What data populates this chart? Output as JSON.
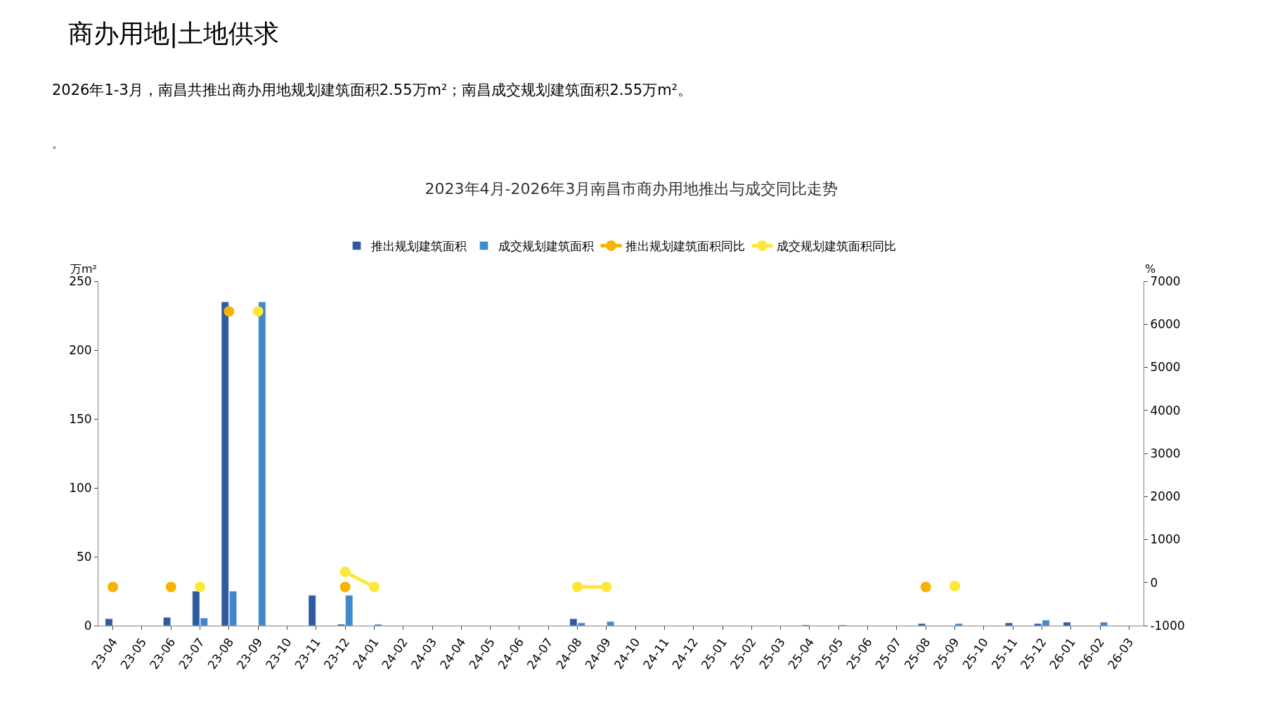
{
  "chart_data": {
    "type": "bar",
    "title": "2023年4月-2026年3月南昌市商办用地推出与成交同比走势",
    "ylabel": "万m²",
    "y2label": "%",
    "annotations": [
      "商办用地|土地供求",
      "2026年1-3月，南昌共推出商办用地规划建筑面积2.55万m²；南昌成交规划建筑面积2.55万m²。",
      "。"
    ],
    "categories": [
      "23-04",
      "23-05",
      "23-06",
      "23-07",
      "23-08",
      "23-09",
      "23-10",
      "23-11",
      "23-12",
      "24-01",
      "24-02",
      "24-03",
      "24-04",
      "24-05",
      "24-06",
      "24-07",
      "24-08",
      "24-09",
      "24-10",
      "24-11",
      "24-12",
      "25-01",
      "25-02",
      "25-03",
      "25-04",
      "25-05",
      "25-06",
      "25-07",
      "25-08",
      "25-09",
      "25-10",
      "25-11",
      "25-12",
      "26-01",
      "26-02",
      "26-03"
    ],
    "series": [
      {
        "name": "推出规划建筑面积",
        "color": "#2e5aa0",
        "values": [
          5,
          null,
          6,
          25,
          235,
          null,
          null,
          22,
          1,
          null,
          null,
          null,
          null,
          null,
          null,
          null,
          5,
          null,
          null,
          null,
          null,
          null,
          null,
          null,
          0.5,
          null,
          null,
          null,
          1.5,
          null,
          null,
          2,
          1.5,
          2.5,
          null,
          null
        ]
      },
      {
        "name": "成交规划建筑面积",
        "color": "#3f88cc",
        "values": [
          null,
          null,
          null,
          5.5,
          25,
          235,
          null,
          null,
          22,
          1,
          null,
          null,
          null,
          null,
          null,
          null,
          2,
          3,
          null,
          null,
          null,
          null,
          null,
          null,
          null,
          0.5,
          null,
          null,
          null,
          1.5,
          null,
          null,
          4,
          null,
          2.5,
          null
        ]
      },
      {
        "name": "推出规划建筑面积同比",
        "type": "line",
        "axis": "y2",
        "marker": "circle",
        "color": "#f5b400",
        "values": [
          -100,
          null,
          -100,
          null,
          6300,
          null,
          null,
          null,
          -100,
          null,
          null,
          null,
          null,
          null,
          null,
          null,
          null,
          null,
          null,
          null,
          null,
          null,
          null,
          null,
          null,
          null,
          null,
          null,
          -100,
          null,
          null,
          null,
          null,
          null,
          null,
          null
        ]
      },
      {
        "name": "成交规划建筑面积同比",
        "type": "line",
        "axis": "y2",
        "marker": "circle",
        "color": "#fde83a",
        "values": [
          null,
          null,
          null,
          -100,
          null,
          6300,
          null,
          null,
          250,
          -100,
          null,
          null,
          null,
          null,
          null,
          null,
          -100,
          -100,
          null,
          null,
          null,
          null,
          null,
          null,
          null,
          null,
          null,
          null,
          null,
          -80,
          null,
          null,
          null,
          null,
          null,
          null
        ]
      }
    ],
    "ylim": [
      0,
      250
    ],
    "yticks": [
      0,
      50,
      100,
      150,
      200,
      250
    ],
    "y2lim": [
      -1000,
      7000
    ],
    "y2ticks": [
      -1000,
      0,
      1000,
      2000,
      3000,
      4000,
      5000,
      6000,
      7000
    ],
    "legend": "top"
  }
}
